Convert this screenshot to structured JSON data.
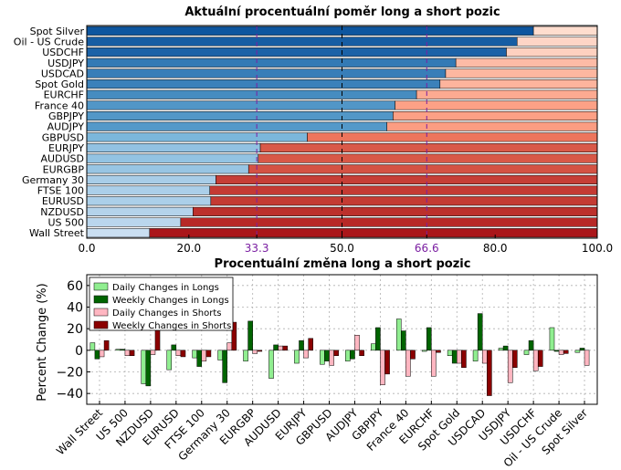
{
  "chart_data": [
    {
      "type": "bar",
      "orientation": "horizontal",
      "stacked": true,
      "title": "Aktuální procentuální poměr long a short pozic",
      "categories": [
        "Spot Silver",
        "Oil - US Crude",
        "USDCHF",
        "USDJPY",
        "USDCAD",
        "Spot Gold",
        "EURCHF",
        "France 40",
        "GBPJPY",
        "AUDJPY",
        "GBPUSD",
        "EURJPY",
        "AUDUSD",
        "EURGBP",
        "Germany 30",
        "FTSE 100",
        "EURUSD",
        "NZDUSD",
        "US 500",
        "Wall Street"
      ],
      "series": [
        {
          "values": [
            87.5,
            84.3,
            82.2,
            72.3,
            70.3,
            69.2,
            64.6,
            60.4,
            60.0,
            58.8,
            43.2,
            34.0,
            33.6,
            31.7,
            25.3,
            24.1,
            24.3,
            20.8,
            18.4,
            12.3
          ]
        },
        {
          "values": [
            12.5,
            15.7,
            17.8,
            27.7,
            29.7,
            30.8,
            35.4,
            39.6,
            40.0,
            41.2,
            56.8,
            66.0,
            66.4,
            68.3,
            74.7,
            75.9,
            75.7,
            79.2,
            81.6,
            87.7
          ]
        }
      ],
      "xlim": [
        0,
        100
      ],
      "xticks": [
        "0.0",
        "20.0",
        "33.3",
        "50.0",
        "66.6",
        "80.0",
        "100.0"
      ],
      "reference_lines": [
        33.3,
        50.0,
        66.6
      ],
      "xlabel": "",
      "ylabel": ""
    },
    {
      "type": "bar",
      "title": "Procentuální změna long a short pozic",
      "ylabel": "Percent Change (%)",
      "xlabel": "",
      "ylim": [
        -50,
        70
      ],
      "yticks": [
        "60",
        "40",
        "20",
        "0",
        "−20",
        "−40"
      ],
      "legend_position": "top-left",
      "grid": true,
      "categories": [
        "Wall Street",
        "US 500",
        "NZDUSD",
        "EURUSD",
        "FTSE 100",
        "Germany 30",
        "EURGBP",
        "AUDUSD",
        "EURJPY",
        "GBPUSD",
        "AUDJPY",
        "GBPJPY",
        "France 40",
        "EURCHF",
        "Spot Gold",
        "USDCAD",
        "USDJPY",
        "USDCHF",
        "Oil - US Crude",
        "Spot Silver"
      ],
      "series": [
        {
          "name": "Daily Changes in Longs",
          "color": "#90ee90",
          "values": [
            7,
            1,
            -31,
            -18,
            -7,
            -9,
            -10,
            -26,
            -12,
            -13,
            -10,
            6,
            29,
            -1,
            -5,
            -10,
            2,
            -4,
            21,
            -2
          ]
        },
        {
          "name": "Weekly Changes in Longs",
          "color": "#006400",
          "values": [
            -8,
            1,
            -33,
            5,
            -15,
            -30,
            27,
            5,
            9,
            -10,
            -8,
            21,
            18,
            21,
            -12,
            34,
            4,
            9,
            -1,
            2
          ]
        },
        {
          "name": "Daily Changes in Shorts",
          "color": "#ffb6c1",
          "values": [
            -6,
            -5,
            -4,
            -5,
            -10,
            7,
            -3,
            4,
            -7,
            -14,
            14,
            -32,
            -24,
            -24,
            -12,
            -12,
            -30,
            -19,
            -4,
            -14
          ]
        },
        {
          "name": "Weekly Changes in Shorts",
          "color": "#8b0000",
          "values": [
            9,
            -5,
            23,
            -6,
            -6,
            26,
            -1,
            4,
            11,
            -5,
            -5,
            -22,
            -8,
            -2,
            -16,
            -42,
            -16,
            -15,
            -3,
            0
          ]
        }
      ]
    }
  ]
}
